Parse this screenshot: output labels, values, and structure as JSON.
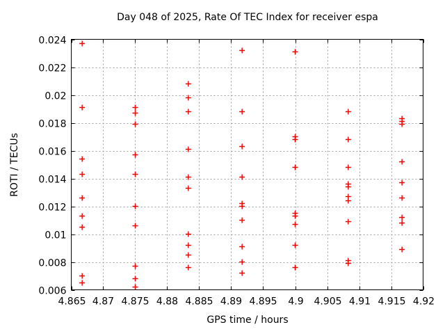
{
  "chart_data": {
    "type": "scatter",
    "title": "Day 048 of 2025, Rate Of TEC Index for receiver espa",
    "xlabel": "GPS time / hours",
    "ylabel": "ROTI / TECUs",
    "xlim": [
      4.865,
      4.92
    ],
    "ylim": [
      0.006,
      0.024
    ],
    "x_ticks": [
      4.865,
      4.87,
      4.875,
      4.88,
      4.885,
      4.89,
      4.895,
      4.9,
      4.905,
      4.91,
      4.915,
      4.92
    ],
    "x_tick_labels": [
      "4.865",
      "4.87",
      "4.875",
      "4.88",
      "4.885",
      "4.89",
      "4.895",
      "4.9",
      "4.905",
      "4.91",
      "4.915",
      "4.92"
    ],
    "y_ticks": [
      0.006,
      0.008,
      0.01,
      0.012,
      0.014,
      0.016,
      0.018,
      0.02,
      0.022,
      0.024
    ],
    "y_tick_labels": [
      "0.006",
      "0.008",
      "0.01",
      "0.012",
      "0.014",
      "0.016",
      "0.018",
      "0.02",
      "0.022",
      "0.024"
    ],
    "grid": true,
    "legend": "none",
    "colors": {
      "background": "#ffffff",
      "border": "#000000",
      "grid": "#a0a0a0",
      "marker": "#ee0000",
      "text": "#000000"
    },
    "marker": {
      "shape": "plus",
      "size": 9
    },
    "series": [
      {
        "name": "ROTI",
        "points": [
          [
            4.8667,
            0.0237
          ],
          [
            4.8667,
            0.0191
          ],
          [
            4.8667,
            0.0154
          ],
          [
            4.8667,
            0.0143
          ],
          [
            4.8667,
            0.0126
          ],
          [
            4.8667,
            0.0113
          ],
          [
            4.8667,
            0.0105
          ],
          [
            4.8667,
            0.007
          ],
          [
            4.8667,
            0.0065
          ],
          [
            4.875,
            0.0191
          ],
          [
            4.875,
            0.0187
          ],
          [
            4.875,
            0.0179
          ],
          [
            4.875,
            0.0157
          ],
          [
            4.875,
            0.0143
          ],
          [
            4.875,
            0.012
          ],
          [
            4.875,
            0.0106
          ],
          [
            4.875,
            0.0077
          ],
          [
            4.875,
            0.0068
          ],
          [
            4.875,
            0.0062
          ],
          [
            4.8833,
            0.0208
          ],
          [
            4.8833,
            0.0198
          ],
          [
            4.8833,
            0.0188
          ],
          [
            4.8833,
            0.0161
          ],
          [
            4.8833,
            0.0141
          ],
          [
            4.8833,
            0.0133
          ],
          [
            4.8833,
            0.01
          ],
          [
            4.8833,
            0.0092
          ],
          [
            4.8833,
            0.0085
          ],
          [
            4.8833,
            0.0076
          ],
          [
            4.8917,
            0.0232
          ],
          [
            4.8917,
            0.0188
          ],
          [
            4.8917,
            0.0163
          ],
          [
            4.8917,
            0.0141
          ],
          [
            4.8917,
            0.0122
          ],
          [
            4.8917,
            0.012
          ],
          [
            4.8917,
            0.011
          ],
          [
            4.8917,
            0.0091
          ],
          [
            4.8917,
            0.008
          ],
          [
            4.8917,
            0.0072
          ],
          [
            4.9,
            0.0231
          ],
          [
            4.9,
            0.017
          ],
          [
            4.9,
            0.0168
          ],
          [
            4.9,
            0.0148
          ],
          [
            4.9,
            0.0115
          ],
          [
            4.9,
            0.0113
          ],
          [
            4.9,
            0.0107
          ],
          [
            4.9,
            0.0092
          ],
          [
            4.9,
            0.0076
          ],
          [
            4.9083,
            0.0188
          ],
          [
            4.9083,
            0.0168
          ],
          [
            4.9083,
            0.0148
          ],
          [
            4.9083,
            0.0136
          ],
          [
            4.9083,
            0.0134
          ],
          [
            4.9083,
            0.0127
          ],
          [
            4.9083,
            0.0124
          ],
          [
            4.9083,
            0.0109
          ],
          [
            4.9083,
            0.0081
          ],
          [
            4.9083,
            0.0079
          ],
          [
            4.9167,
            0.0183
          ],
          [
            4.9167,
            0.0181
          ],
          [
            4.9167,
            0.0179
          ],
          [
            4.9167,
            0.0152
          ],
          [
            4.9167,
            0.0137
          ],
          [
            4.9167,
            0.0126
          ],
          [
            4.9167,
            0.0112
          ],
          [
            4.9167,
            0.0108
          ],
          [
            4.9167,
            0.0089
          ]
        ]
      }
    ]
  }
}
